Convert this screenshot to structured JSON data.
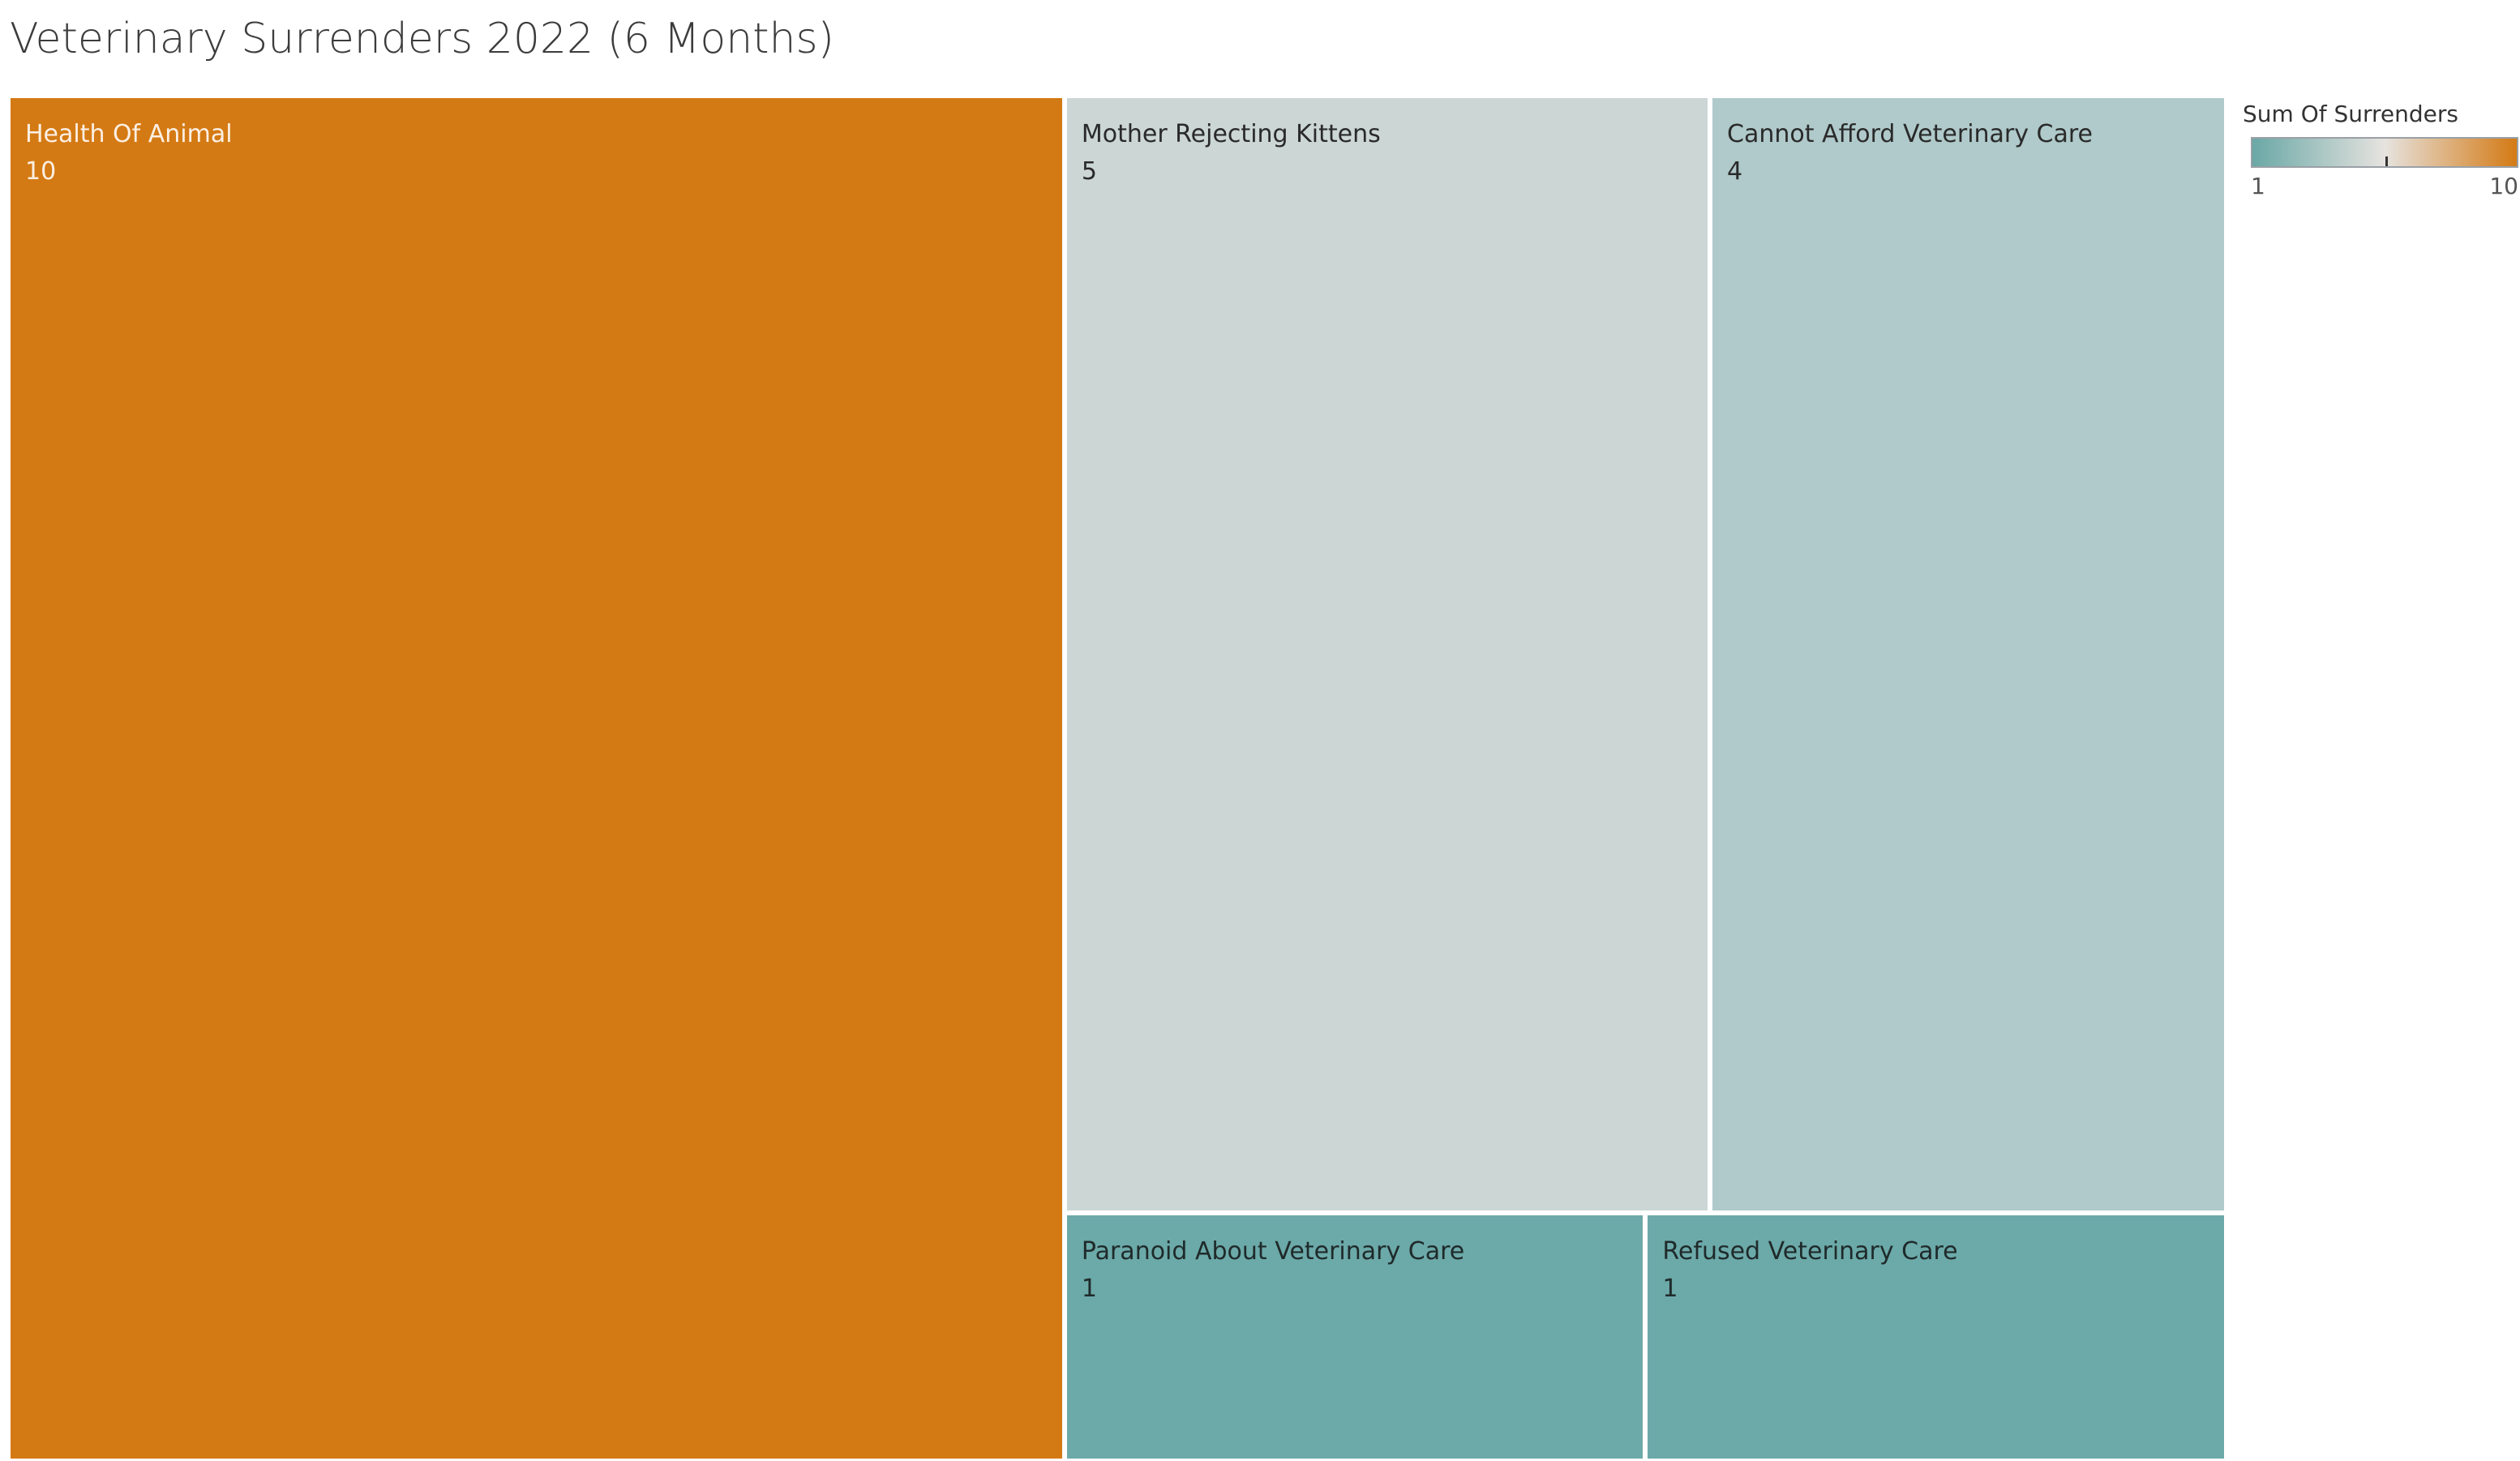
{
  "title": "Veterinary Surrenders 2022 (6 Months)",
  "legend": {
    "title": "Sum Of Surrenders",
    "min_label": "1",
    "max_label": "10",
    "color_low": "#6aa8a6",
    "color_mid": "#e6e3df",
    "color_high": "#d47a14"
  },
  "chart_data": {
    "type": "treemap",
    "title": "Veterinary Surrenders 2022 (6 Months)",
    "measure": "Sum Of Surrenders",
    "color_range": [
      1,
      10
    ],
    "items": [
      {
        "label": "Health Of Animal",
        "value": 10,
        "color": "#d47a14",
        "text_color": "#fbefe3"
      },
      {
        "label": "Mother Rejecting Kittens",
        "value": 5,
        "color": "#cbd6d5",
        "text_color": "#2a2a2a"
      },
      {
        "label": "Cannot Afford Veterinary Care",
        "value": 4,
        "color": "#b0c9ca",
        "text_color": "#2a2a2a"
      },
      {
        "label": "Paranoid About Veterinary Care",
        "value": 1,
        "color": "#6ca9a9",
        "text_color": "#1f2a2a"
      },
      {
        "label": "Refused Veterinary Care",
        "value": 1,
        "color": "#6ca9a9",
        "text_color": "#1f2a2a"
      }
    ]
  }
}
